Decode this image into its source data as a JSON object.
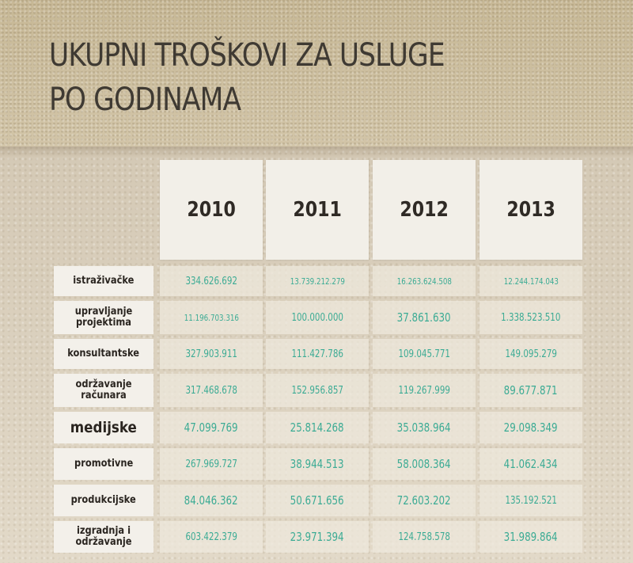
{
  "page": {
    "title": "UKUPNI TROŠKOVI ZA USLUGE PO GODINAMA"
  },
  "chart_data": {
    "type": "table",
    "title": "UKUPNI TROŠKOVI ZA USLUGE PO GODINAMA",
    "columns": [
      "2010",
      "2011",
      "2012",
      "2013"
    ],
    "rows": [
      {
        "category": "istraživačke",
        "values": [
          "334.626.692",
          "13.739.212.279",
          "16.263.624.508",
          "12.244.174.043"
        ]
      },
      {
        "category": "upravljanje projektima",
        "values": [
          "11.196.703.316",
          "100.000.000",
          "37.861.630",
          "1.338.523.510"
        ]
      },
      {
        "category": "konsultantske",
        "values": [
          "327.903.911",
          "111.427.786",
          "109.045.771",
          "149.095.279"
        ]
      },
      {
        "category": "održavanje računara",
        "values": [
          "317.468.678",
          "152.956.857",
          "119.267.999",
          "89.677.871"
        ]
      },
      {
        "category": "medijske",
        "values": [
          "47.099.769",
          "25.814.268",
          "35.038.964",
          "29.098.349"
        ]
      },
      {
        "category": "promotivne",
        "values": [
          "267.969.727",
          "38.944.513",
          "58.008.364",
          "41.062.434"
        ]
      },
      {
        "category": "produkcijske",
        "values": [
          "84.046.362",
          "50.671.656",
          "72.603.202",
          "135.192.521"
        ]
      },
      {
        "category": "izgradnja i održavanje",
        "values": [
          "603.422.379",
          "23.971.394",
          "124.758.578",
          "31.989.864"
        ]
      }
    ]
  }
}
